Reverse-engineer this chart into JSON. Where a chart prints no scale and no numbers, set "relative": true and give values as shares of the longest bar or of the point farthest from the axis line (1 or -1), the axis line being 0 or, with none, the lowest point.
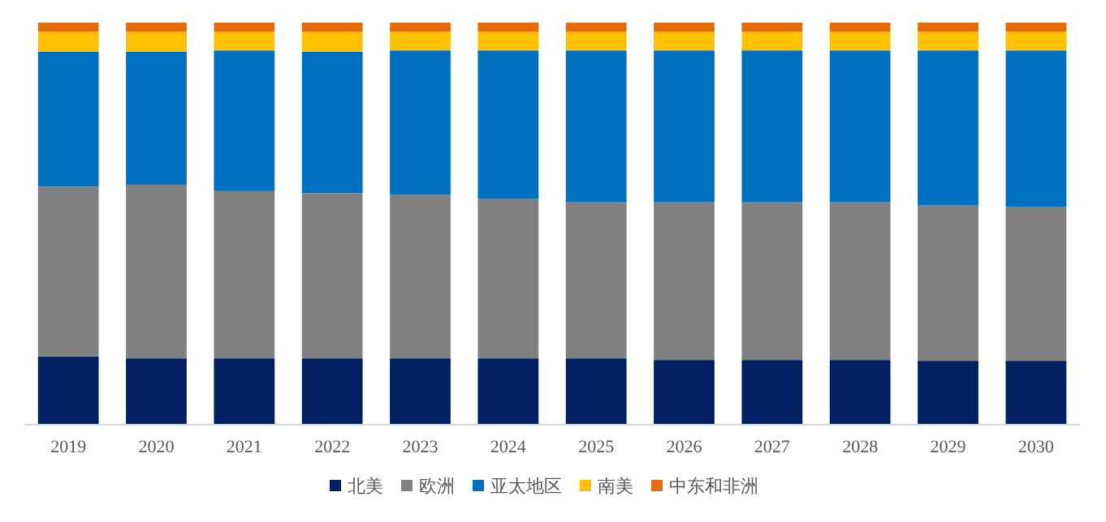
{
  "chart_data": {
    "type": "bar",
    "stacked": true,
    "relative": true,
    "legend": "bottom",
    "categories": [
      "2019",
      "2020",
      "2021",
      "2022",
      "2023",
      "2024",
      "2025",
      "2026",
      "2027",
      "2028",
      "2029",
      "2030"
    ],
    "series": [
      {
        "name": "北美",
        "color": "#002060",
        "values": [
          0.17,
          0.165,
          0.165,
          0.165,
          0.165,
          0.165,
          0.165,
          0.161,
          0.161,
          0.161,
          0.159,
          0.159
        ]
      },
      {
        "name": "欧洲",
        "color": "#808080",
        "values": [
          0.422,
          0.432,
          0.416,
          0.411,
          0.407,
          0.397,
          0.388,
          0.392,
          0.392,
          0.392,
          0.387,
          0.383
        ]
      },
      {
        "name": "亚太地区",
        "color": "#0070c0",
        "values": [
          0.336,
          0.331,
          0.35,
          0.352,
          0.359,
          0.369,
          0.378,
          0.378,
          0.378,
          0.378,
          0.385,
          0.389
        ]
      },
      {
        "name": "南美",
        "color": "#ffc000",
        "values": [
          0.049,
          0.049,
          0.046,
          0.049,
          0.046,
          0.046,
          0.046,
          0.046,
          0.046,
          0.046,
          0.046,
          0.046
        ]
      },
      {
        "name": "中东和非洲",
        "color": "#e46c0a",
        "values": [
          0.023,
          0.023,
          0.023,
          0.023,
          0.023,
          0.023,
          0.023,
          0.023,
          0.023,
          0.023,
          0.023,
          0.023
        ]
      }
    ]
  }
}
